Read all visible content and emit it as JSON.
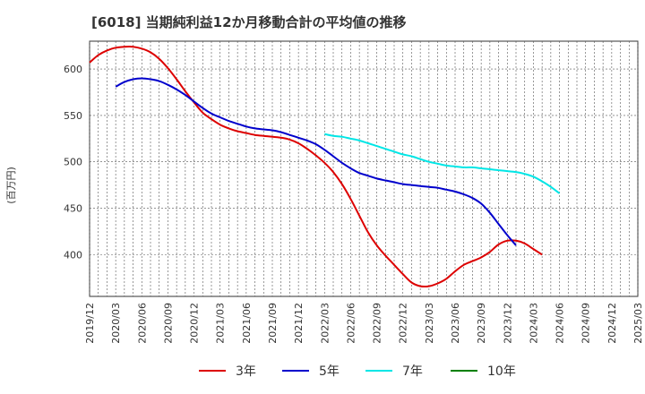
{
  "chart_data": {
    "type": "line",
    "title": "[6018]  当期純利益12か月移動合計の平均値の推移",
    "xlabel": "",
    "ylabel": "(百万円)",
    "ylim": [
      355,
      630
    ],
    "yticks": [
      400,
      450,
      500,
      550,
      600
    ],
    "x_ticks": [
      "2019/12",
      "2020/03",
      "2020/06",
      "2020/09",
      "2020/12",
      "2021/03",
      "2021/06",
      "2021/09",
      "2021/12",
      "2022/03",
      "2022/06",
      "2022/09",
      "2022/12",
      "2023/03",
      "2023/06",
      "2023/09",
      "2023/12",
      "2024/03",
      "2024/06",
      "2024/09",
      "2024/12",
      "2025/03"
    ],
    "grid": true,
    "legend_position": "bottom",
    "series": [
      {
        "name": "3年",
        "color": "#dd0000",
        "start": "2019/12",
        "values": [
          607,
          615,
          620,
          623,
          624,
          624,
          622,
          618,
          611,
          601,
          589,
          576,
          564,
          553,
          546,
          540,
          536,
          533,
          531,
          529,
          528,
          527,
          526,
          524,
          520,
          514,
          507,
          499,
          489,
          476,
          460,
          442,
          424,
          410,
          399,
          389,
          379,
          370,
          366,
          366,
          369,
          374,
          382,
          389,
          393,
          397,
          403,
          411,
          415,
          415,
          412,
          406,
          400
        ]
      },
      {
        "name": "5年",
        "color": "#0000cc",
        "start": "2020/03",
        "values": [
          581,
          586,
          589,
          590,
          589,
          587,
          583,
          578,
          572,
          565,
          558,
          552,
          548,
          544,
          541,
          538,
          536,
          535,
          534,
          532,
          529,
          526,
          523,
          519,
          513,
          506,
          499,
          493,
          488,
          485,
          482,
          480,
          478,
          476,
          475,
          474,
          473,
          472,
          470,
          468,
          465,
          461,
          455,
          445,
          433,
          421,
          410
        ]
      },
      {
        "name": "7年",
        "color": "#00e6e6",
        "start": "2022/03",
        "values": [
          530,
          528,
          527,
          525,
          523,
          520,
          517,
          514,
          511,
          508,
          506,
          503,
          500,
          498,
          496,
          495,
          494,
          494,
          493,
          492,
          491,
          490,
          489,
          487,
          484,
          479,
          473,
          466
        ]
      },
      {
        "name": "10年",
        "color": "#008000",
        "values": []
      }
    ]
  }
}
